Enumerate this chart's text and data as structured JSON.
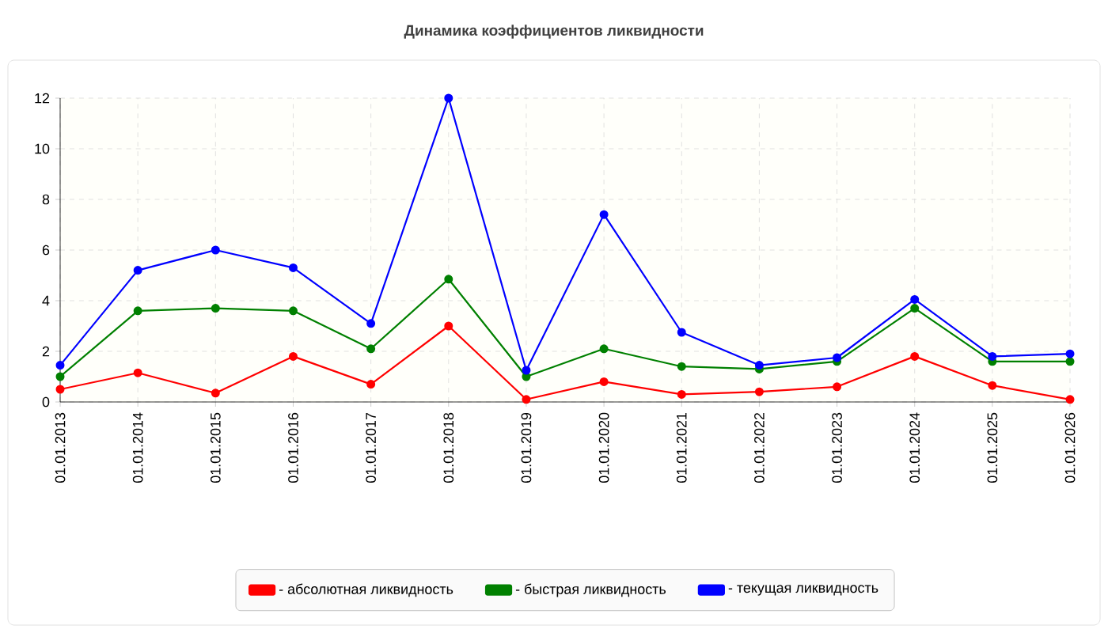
{
  "chart_data": {
    "type": "line",
    "title": "Динамика коэффициентов ликвидности",
    "categories": [
      "01.01.2013",
      "01.01.2014",
      "01.01.2015",
      "01.01.2016",
      "01.01.2017",
      "01.01.2018",
      "01.01.2019",
      "01.01.2020",
      "01.01.2021",
      "01.01.2022",
      "01.01.2023",
      "01.01.2024",
      "01.01.2025",
      "01.01.2026"
    ],
    "series": [
      {
        "name": "- абсолютная ликвидность",
        "color": "#ff0000",
        "values": [
          0.5,
          1.15,
          0.35,
          1.8,
          0.7,
          3.0,
          0.1,
          0.8,
          0.3,
          0.4,
          0.6,
          1.8,
          0.65,
          0.1
        ]
      },
      {
        "name": "- быстрая ликвидность",
        "color": "#008000",
        "values": [
          1.0,
          3.6,
          3.7,
          3.6,
          2.1,
          4.85,
          1.0,
          2.1,
          1.4,
          1.3,
          1.6,
          3.7,
          1.6,
          1.6
        ]
      },
      {
        "name": "- текущая ликвидность",
        "color": "#0000ff",
        "values": [
          1.45,
          5.2,
          6.0,
          5.3,
          3.1,
          12.0,
          1.25,
          7.4,
          2.75,
          1.45,
          1.75,
          4.05,
          1.8,
          1.9
        ]
      }
    ],
    "ylim": [
      0,
      12
    ],
    "yticks": [
      0,
      2,
      4,
      6,
      8,
      10,
      12
    ],
    "grid": true,
    "legend": "bottom",
    "marker": "circle"
  }
}
